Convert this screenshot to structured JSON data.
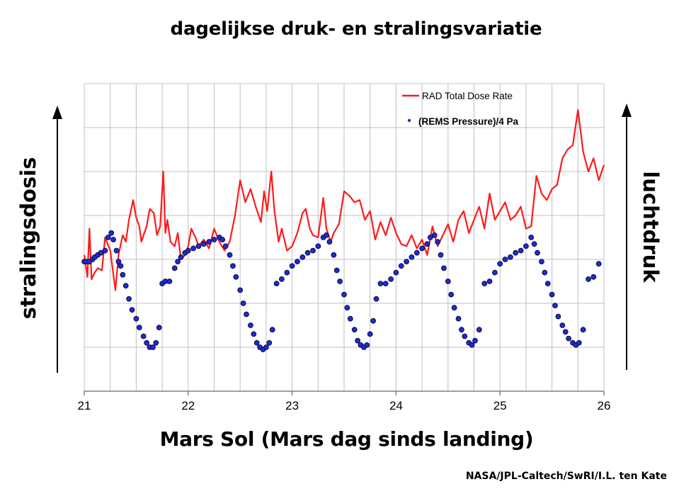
{
  "title": "dagelijkse druk- en stralingsvariatie",
  "credit": "NASA/JPL-Caltech/SwRI/I.L. ten Kate",
  "colors": {
    "radiation": "#ff1a1a",
    "pressure": "#1f2bd6",
    "pressure_edge": "#0a0a40",
    "grid": "#c0c0c0",
    "axis": "#808080"
  },
  "chart_data": {
    "type": "line",
    "title": "dagelijkse druk- en stralingsvariatie",
    "xlabel": "Mars Sol (Mars dag sinds landing)",
    "ylabel_left": "stralingsdosis",
    "ylabel_right": "luchtdruk",
    "xlim": [
      21,
      26
    ],
    "ylim": [
      0,
      7
    ],
    "x_ticks": [
      "21",
      "22",
      "23",
      "24",
      "25",
      "26"
    ],
    "grid": true,
    "legend_position": "top-right",
    "legend": [
      "RAD Total Dose Rate",
      "(REMS Pressure)/4 Pa"
    ],
    "series": [
      {
        "name": "RAD Total Dose Rate",
        "style": "line",
        "x": [
          21.0,
          21.03,
          21.05,
          21.07,
          21.1,
          21.13,
          21.17,
          21.2,
          21.25,
          21.3,
          21.33,
          21.37,
          21.4,
          21.43,
          21.47,
          21.5,
          21.53,
          21.55,
          21.57,
          21.6,
          21.63,
          21.67,
          21.7,
          21.73,
          21.76,
          21.78,
          21.8,
          21.83,
          21.87,
          21.9,
          21.93,
          21.97,
          22.0,
          22.03,
          22.07,
          22.1,
          22.15,
          22.2,
          22.25,
          22.3,
          22.35,
          22.4,
          22.45,
          22.5,
          22.55,
          22.6,
          22.65,
          22.7,
          22.73,
          22.76,
          22.8,
          22.83,
          22.87,
          22.9,
          22.95,
          23.0,
          23.05,
          23.1,
          23.13,
          23.17,
          23.2,
          23.25,
          23.3,
          23.33,
          23.37,
          23.4,
          23.45,
          23.5,
          23.55,
          23.6,
          23.65,
          23.7,
          23.75,
          23.8,
          23.85,
          23.9,
          23.95,
          24.0,
          24.05,
          24.1,
          24.15,
          24.2,
          24.25,
          24.3,
          24.35,
          24.4,
          24.45,
          24.5,
          24.55,
          24.6,
          24.65,
          24.7,
          24.75,
          24.8,
          24.85,
          24.9,
          24.95,
          25.0,
          25.05,
          25.1,
          25.15,
          25.2,
          25.25,
          25.3,
          25.35,
          25.4,
          25.45,
          25.5,
          25.55,
          25.6,
          25.65,
          25.7,
          25.75,
          25.8,
          25.85,
          25.9,
          25.95,
          26.0
        ],
        "values": [
          3.1,
          2.6,
          3.7,
          2.55,
          2.7,
          2.8,
          2.75,
          3.5,
          3.2,
          2.3,
          3.1,
          3.55,
          3.4,
          3.9,
          4.35,
          3.95,
          3.75,
          3.4,
          3.55,
          3.75,
          4.15,
          4.05,
          3.55,
          3.75,
          5.0,
          3.6,
          3.9,
          3.4,
          3.3,
          3.6,
          3.0,
          3.1,
          3.3,
          3.7,
          3.5,
          3.3,
          3.45,
          3.25,
          3.7,
          3.4,
          3.2,
          3.4,
          4.0,
          4.8,
          4.3,
          4.6,
          4.2,
          3.85,
          4.55,
          4.1,
          5.0,
          4.1,
          3.4,
          3.7,
          3.2,
          3.3,
          3.6,
          4.05,
          4.15,
          3.7,
          3.55,
          3.5,
          4.4,
          3.7,
          3.4,
          3.6,
          3.8,
          4.55,
          4.45,
          4.3,
          4.35,
          3.9,
          4.1,
          3.45,
          3.85,
          3.55,
          3.95,
          3.6,
          3.35,
          3.3,
          3.55,
          3.25,
          3.45,
          3.1,
          3.75,
          3.3,
          3.55,
          3.8,
          3.4,
          3.9,
          4.1,
          3.6,
          3.9,
          4.2,
          3.7,
          4.5,
          3.9,
          4.1,
          4.3,
          3.9,
          4.0,
          4.2,
          3.7,
          3.75,
          4.9,
          4.5,
          4.35,
          4.6,
          4.7,
          5.3,
          5.5,
          5.6,
          6.4,
          5.45,
          5.0,
          5.3,
          4.8,
          5.15
        ]
      },
      {
        "name": "(REMS Pressure)/4 Pa",
        "style": "dots",
        "x": [
          21.0,
          21.02,
          21.05,
          21.08,
          21.1,
          21.13,
          21.16,
          21.2,
          21.23,
          21.26,
          21.28,
          21.31,
          21.33,
          21.35,
          21.37,
          21.4,
          21.43,
          21.46,
          21.5,
          21.53,
          21.57,
          21.6,
          21.63,
          21.66,
          21.69,
          21.72,
          21.75,
          21.78,
          21.82,
          21.87,
          21.9,
          21.93,
          21.97,
          22.0,
          22.05,
          22.1,
          22.15,
          22.2,
          22.25,
          22.3,
          22.33,
          22.36,
          22.4,
          22.43,
          22.46,
          22.5,
          22.53,
          22.56,
          22.6,
          22.63,
          22.66,
          22.69,
          22.72,
          22.75,
          22.78,
          22.81,
          22.85,
          22.9,
          22.95,
          23.0,
          23.05,
          23.1,
          23.15,
          23.2,
          23.25,
          23.3,
          23.33,
          23.36,
          23.4,
          23.43,
          23.46,
          23.5,
          23.53,
          23.56,
          23.6,
          23.63,
          23.66,
          23.69,
          23.72,
          23.75,
          23.78,
          23.81,
          23.85,
          23.9,
          23.95,
          24.0,
          24.05,
          24.1,
          24.15,
          24.2,
          24.25,
          24.3,
          24.33,
          24.37,
          24.4,
          24.43,
          24.46,
          24.5,
          24.53,
          24.56,
          24.6,
          24.63,
          24.66,
          24.7,
          24.73,
          24.76,
          24.8,
          24.85,
          24.9,
          24.95,
          25.0,
          25.05,
          25.1,
          25.15,
          25.2,
          25.25,
          25.3,
          25.33,
          25.36,
          25.4,
          25.43,
          25.46,
          25.5,
          25.53,
          25.56,
          25.6,
          25.63,
          25.66,
          25.7,
          25.73,
          25.76,
          25.8,
          25.85,
          25.9,
          25.95
        ],
        "values": [
          2.95,
          2.95,
          2.95,
          3.0,
          3.05,
          3.1,
          3.15,
          3.2,
          3.5,
          3.6,
          3.45,
          3.2,
          2.95,
          2.85,
          2.65,
          2.4,
          2.1,
          1.85,
          1.65,
          1.45,
          1.25,
          1.1,
          1.0,
          1.0,
          1.1,
          1.45,
          2.45,
          2.5,
          2.5,
          2.8,
          2.95,
          3.05,
          3.15,
          3.2,
          3.25,
          3.3,
          3.35,
          3.4,
          3.45,
          3.5,
          3.45,
          3.3,
          3.1,
          2.85,
          2.6,
          2.3,
          2.0,
          1.75,
          1.5,
          1.3,
          1.1,
          1.0,
          0.95,
          1.0,
          1.1,
          1.4,
          2.45,
          2.55,
          2.7,
          2.85,
          2.95,
          3.05,
          3.15,
          3.2,
          3.3,
          3.5,
          3.55,
          3.4,
          3.1,
          2.75,
          2.5,
          2.2,
          1.9,
          1.65,
          1.4,
          1.15,
          1.05,
          1.0,
          1.05,
          1.3,
          1.6,
          2.1,
          2.45,
          2.45,
          2.55,
          2.7,
          2.85,
          2.95,
          3.05,
          3.15,
          3.25,
          3.35,
          3.5,
          3.55,
          3.4,
          3.1,
          2.8,
          2.5,
          2.2,
          1.9,
          1.65,
          1.4,
          1.25,
          1.1,
          1.05,
          1.15,
          1.4,
          2.45,
          2.5,
          2.7,
          2.9,
          3.0,
          3.05,
          3.15,
          3.2,
          3.3,
          3.5,
          3.35,
          3.15,
          2.95,
          2.7,
          2.45,
          2.2,
          1.95,
          1.7,
          1.5,
          1.35,
          1.2,
          1.1,
          1.05,
          1.1,
          1.4,
          2.55,
          2.6,
          2.9
        ]
      }
    ]
  }
}
